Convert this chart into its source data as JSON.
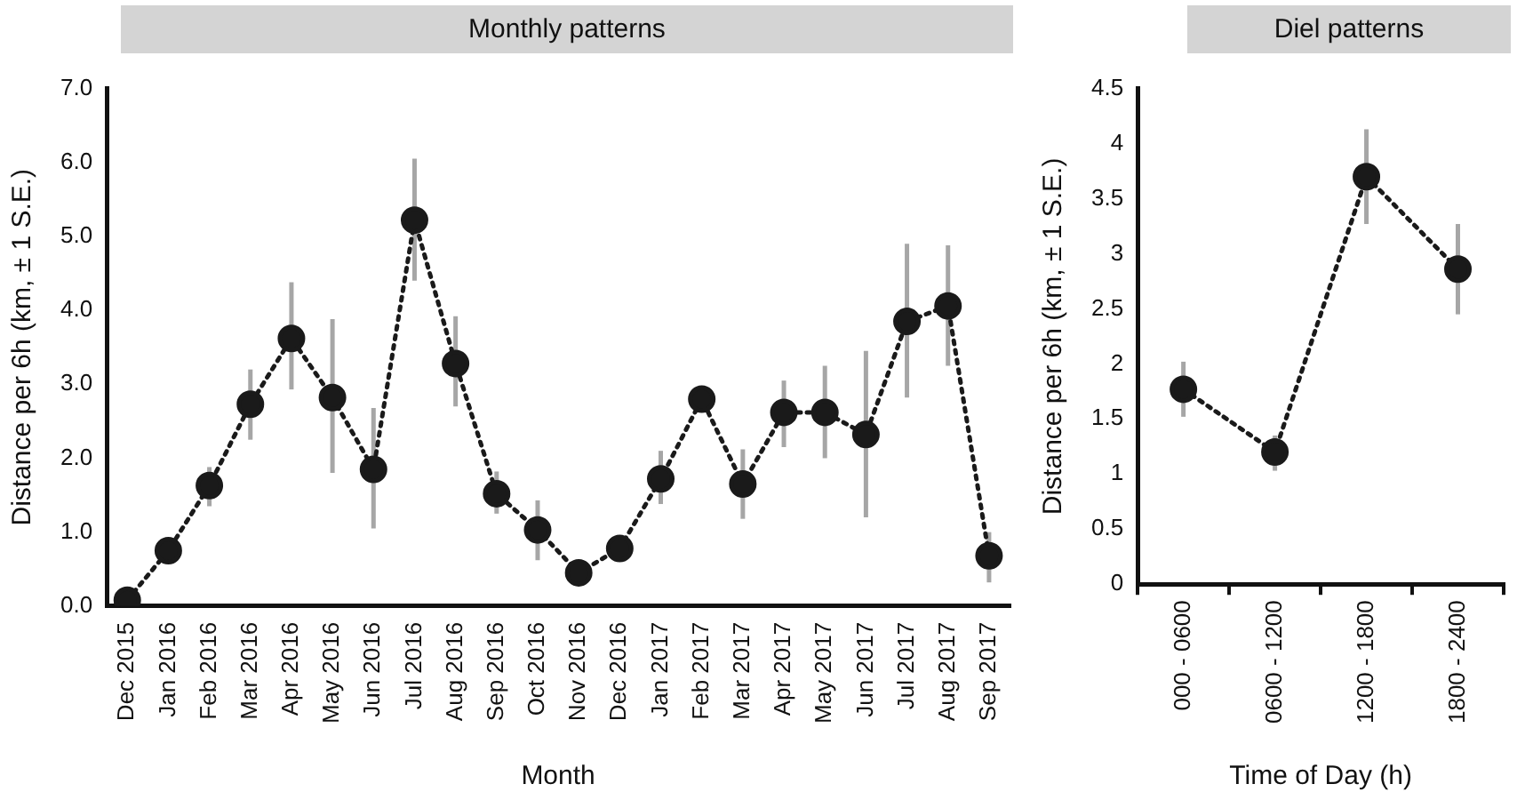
{
  "chart_data": [
    {
      "type": "line",
      "title": "Monthly patterns",
      "xlabel": "Month",
      "ylabel": "Distance per 6h (km, ± 1 S.E.)",
      "categories": [
        "Dec 2015",
        "Jan 2016",
        "Feb 2016",
        "Mar 2016",
        "Apr 2016",
        "May 2016",
        "Jun 2016",
        "Jul 2016",
        "Aug 2016",
        "Sep 2016",
        "Oct 2016",
        "Nov 2016",
        "Dec 2016",
        "Jan 2017",
        "Feb 2017",
        "Mar 2017",
        "Apr 2017",
        "May 2017",
        "Jun 2017",
        "Jul 2017",
        "Aug 2017",
        "Sep 2017"
      ],
      "values": [
        0.08,
        0.75,
        1.63,
        2.73,
        3.62,
        2.82,
        1.85,
        5.22,
        3.28,
        1.52,
        1.03,
        0.45,
        0.78,
        1.72,
        2.8,
        1.65,
        2.62,
        2.62,
        2.32,
        3.85,
        4.06,
        0.68
      ],
      "errors": [
        null,
        null,
        [
          1.35,
          1.88
        ],
        [
          2.25,
          3.2
        ],
        [
          2.93,
          4.38
        ],
        [
          1.8,
          3.88
        ],
        [
          1.05,
          2.68
        ],
        [
          4.4,
          6.05
        ],
        [
          2.7,
          3.92
        ],
        [
          1.25,
          1.82
        ],
        [
          0.62,
          1.43
        ],
        null,
        null,
        [
          1.38,
          2.1
        ],
        null,
        [
          1.18,
          2.12
        ],
        [
          2.15,
          3.05
        ],
        [
          2.0,
          3.25
        ],
        [
          1.2,
          3.45
        ],
        [
          2.82,
          4.9
        ],
        [
          3.25,
          4.88
        ],
        [
          0.32,
          1.0
        ]
      ],
      "color": "#1a1a1a",
      "marker": "circle",
      "line_style": "dotted",
      "grid": false,
      "ylim": [
        0,
        7
      ],
      "yticks": [
        {
          "value": 0,
          "label": "0.0"
        },
        {
          "value": 1,
          "label": "1.0"
        },
        {
          "value": 2,
          "label": "2.0"
        },
        {
          "value": 3,
          "label": "3.0"
        },
        {
          "value": 4,
          "label": "4.0"
        },
        {
          "value": 5,
          "label": "5.0"
        },
        {
          "value": 6,
          "label": "6.0"
        },
        {
          "value": 7,
          "label": "7.0"
        }
      ]
    },
    {
      "type": "line",
      "title": "Diel patterns",
      "xlabel": "Time of Day (h)",
      "ylabel": "Distance per 6h (km, ± 1 S.E.)",
      "categories": [
        "000 - 0600",
        "0600 - 1200",
        "1200 - 1800",
        "1800 - 2400"
      ],
      "values": [
        1.77,
        1.2,
        3.7,
        2.86
      ],
      "errors": [
        [
          1.52,
          2.02
        ],
        [
          1.03,
          1.35
        ],
        [
          3.27,
          4.13
        ],
        [
          2.45,
          3.27
        ]
      ],
      "color": "#1a1a1a",
      "marker": "circle",
      "line_style": "dotted",
      "grid": false,
      "ylim": [
        0,
        4.5
      ],
      "yticks": [
        0,
        0.5,
        1,
        1.5,
        2,
        2.5,
        3,
        3.5,
        4,
        4.5
      ]
    }
  ]
}
